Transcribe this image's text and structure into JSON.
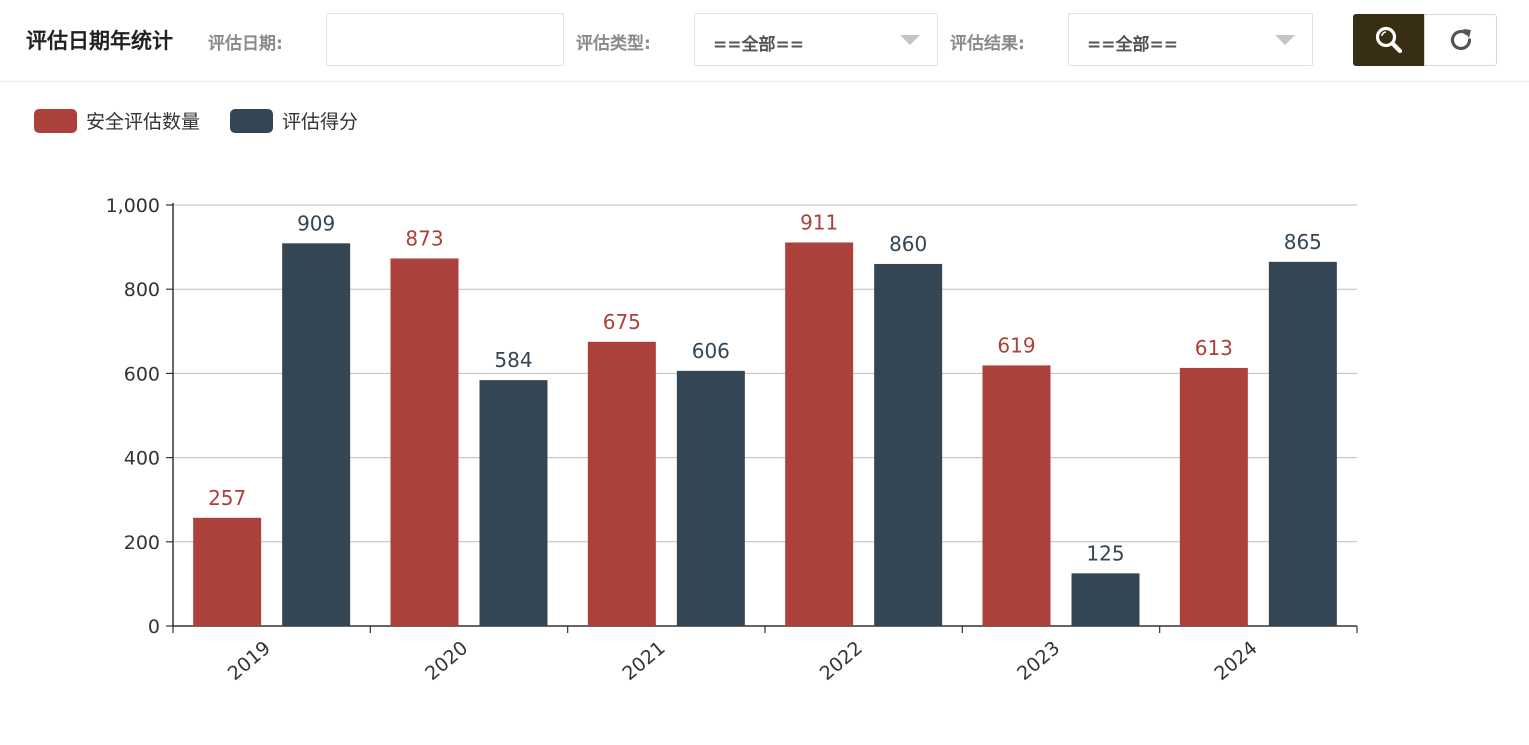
{
  "toolbar": {
    "title": "评估日期年统计",
    "date_label": "评估日期:",
    "date_value": "",
    "type_label": "评估类型:",
    "type_selected": "==全部==",
    "result_label": "评估结果:",
    "result_selected": "==全部==",
    "search_icon": "search-icon",
    "refresh_icon": "refresh-icon"
  },
  "colors": {
    "series_1": "#ab413a",
    "series_2": "#344554",
    "search_button_bg": "#382e14",
    "axis": "#333333",
    "grid": "#bdbdbd"
  },
  "chart_data": {
    "type": "bar",
    "categories": [
      "2019",
      "2020",
      "2021",
      "2022",
      "2023",
      "2024"
    ],
    "series": [
      {
        "name": "安全评估数量",
        "values": [
          257,
          873,
          675,
          911,
          619,
          613
        ]
      },
      {
        "name": "评估得分",
        "values": [
          909,
          584,
          606,
          860,
          125,
          865
        ]
      }
    ],
    "ylim": [
      0,
      1000
    ],
    "yticks": [
      0,
      200,
      400,
      600,
      800,
      1000
    ],
    "ytick_labels": [
      "0",
      "200",
      "400",
      "600",
      "800",
      "1,000"
    ],
    "grid": true,
    "legend": "top-left",
    "data_labels": true,
    "xtick_rotation": -40
  }
}
